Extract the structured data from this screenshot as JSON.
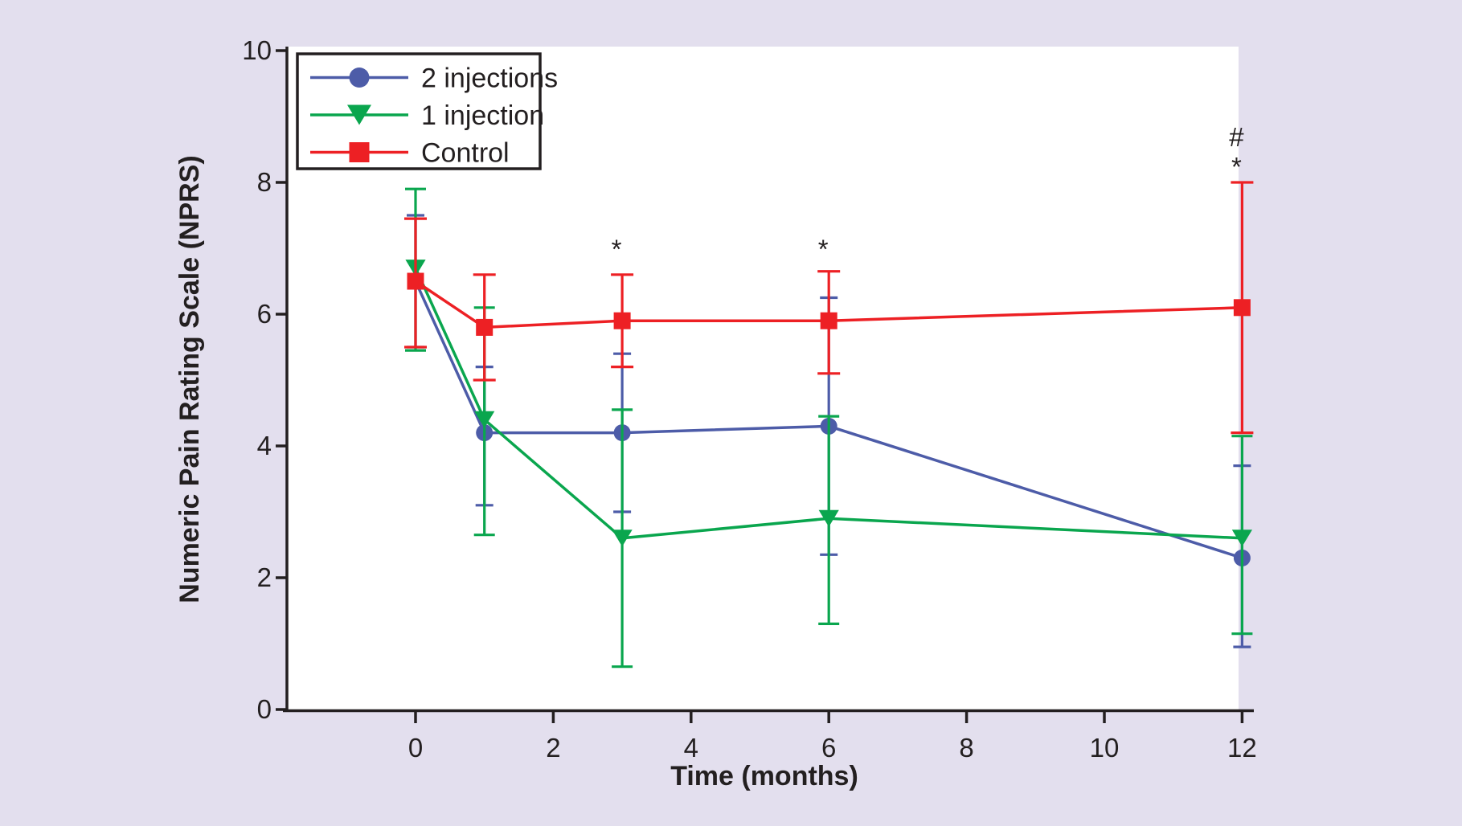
{
  "figure": {
    "background_color": "#e3dfee",
    "plot_background_color": "#ffffff",
    "axis_color": "#231f20",
    "text_color": "#231f20",
    "legend_fill": "#ffffff"
  },
  "chart_data": {
    "type": "line",
    "title": "",
    "xlabel": "Time (months)",
    "ylabel": "Numeric Pain Rating Scale (NPRS)",
    "xlim": [
      0,
      12
    ],
    "ylim": [
      0,
      10
    ],
    "xticks": [
      0,
      2,
      4,
      6,
      8,
      10,
      12
    ],
    "yticks": [
      0,
      2,
      4,
      6,
      8,
      10
    ],
    "x": [
      0,
      1,
      3,
      6,
      12
    ],
    "grid": false,
    "legend_position": "upper-left",
    "error_bars": true,
    "series": [
      {
        "name": "2 injections",
        "color": "#4d5ca8",
        "marker": "circle",
        "values": [
          6.5,
          4.2,
          4.2,
          4.3,
          2.3
        ],
        "err_upper": [
          7.5,
          5.2,
          5.4,
          6.25,
          3.7
        ],
        "err_lower": [
          5.5,
          3.1,
          3.0,
          2.35,
          0.95
        ]
      },
      {
        "name": "1 injection",
        "color": "#0aa64e",
        "marker": "triangle-down",
        "values": [
          6.7,
          4.4,
          2.6,
          2.9,
          2.6
        ],
        "err_upper": [
          7.9,
          6.1,
          4.55,
          4.45,
          4.15
        ],
        "err_lower": [
          5.45,
          2.65,
          0.65,
          1.3,
          1.15
        ]
      },
      {
        "name": "Control",
        "color": "#ed2024",
        "marker": "square",
        "values": [
          6.5,
          5.8,
          5.9,
          5.9,
          6.1
        ],
        "err_upper": [
          7.45,
          6.6,
          6.6,
          6.65,
          8.0
        ],
        "err_lower": [
          5.5,
          5.0,
          5.2,
          5.1,
          4.2
        ]
      }
    ],
    "annotations": [
      {
        "text": "*",
        "x": 3,
        "y": 6.85
      },
      {
        "text": "*",
        "x": 6,
        "y": 6.85
      },
      {
        "text": "#",
        "x": 12,
        "y": 8.55
      },
      {
        "text": "*",
        "x": 12,
        "y": 8.1
      }
    ]
  }
}
